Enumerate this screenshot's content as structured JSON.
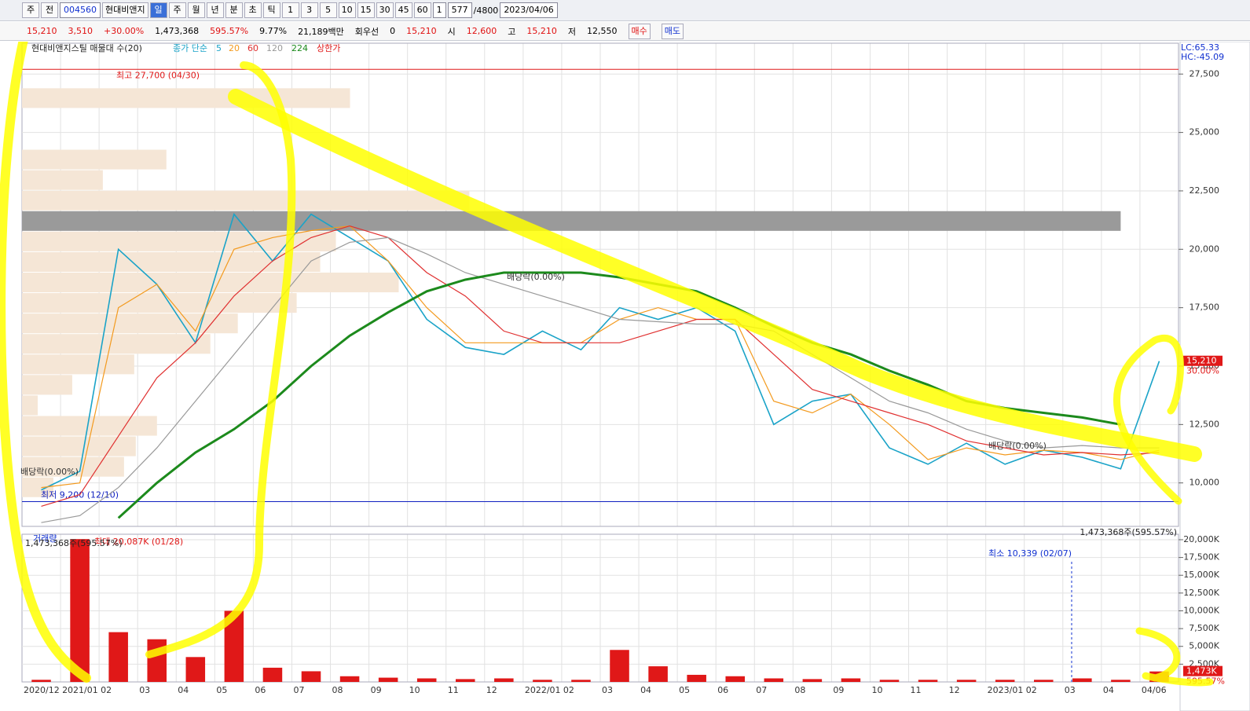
{
  "toolbar": {
    "left": [
      "주",
      "전"
    ],
    "code": "004560",
    "name": "현대비앤지",
    "periods": [
      "일",
      "주",
      "월",
      "년",
      "분",
      "초",
      "틱"
    ],
    "intervals": [
      "1",
      "3",
      "5",
      "10",
      "15",
      "30",
      "45",
      "60"
    ],
    "unit": "1",
    "count": "577",
    "total": "/4800",
    "date": "2023/04/06"
  },
  "quote": {
    "price": "15,210",
    "change": "3,510",
    "rate": "+30.00%",
    "volume": "1,473,368",
    "vol_rate": "595.57%",
    "turnover": "9.77%",
    "amount": "21,189백만",
    "prefer": "회우선",
    "prefer_val": "0",
    "cur": "15,210",
    "open_label": "시",
    "open": "12,600",
    "high_label": "고",
    "high": "15,210",
    "low_label": "저",
    "low": "12,550",
    "buy": "매수",
    "sell": "매도"
  },
  "chart_data": [
    {
      "type": "line",
      "title": "현대비앤지스틸 매물대 수(20)",
      "legend_prefix": "종가 단순",
      "legend_extra": "상한가",
      "categories": [
        "2020/12",
        "2021/01",
        "02",
        "03",
        "04",
        "05",
        "06",
        "07",
        "08",
        "09",
        "10",
        "11",
        "12",
        "2022/01",
        "02",
        "03",
        "04",
        "05",
        "06",
        "07",
        "08",
        "09",
        "10",
        "11",
        "12",
        "2023/01",
        "02",
        "03",
        "04",
        "04/06"
      ],
      "series": [
        {
          "name": "5",
          "color": "#1aa3c8",
          "values": [
            9700,
            10500,
            20000,
            18500,
            16000,
            21500,
            19500,
            21500,
            20500,
            19500,
            17000,
            15800,
            15500,
            16500,
            15700,
            17500,
            17000,
            17500,
            16500,
            12500,
            13500,
            13800,
            11500,
            10800,
            11700,
            10800,
            11400,
            11100,
            10600,
            15210
          ]
        },
        {
          "name": "20",
          "color": "#f39a1e",
          "values": [
            9800,
            10000,
            17500,
            18500,
            16500,
            20000,
            20500,
            20800,
            21000,
            19500,
            17500,
            16000,
            16000,
            16000,
            16000,
            17000,
            17500,
            17000,
            17000,
            13500,
            13000,
            13800,
            12500,
            11000,
            11500,
            11200,
            11400,
            11300,
            11000,
            11400
          ]
        },
        {
          "name": "60",
          "color": "#e03030",
          "values": [
            9000,
            9500,
            12000,
            14500,
            16000,
            18000,
            19500,
            20500,
            21000,
            20500,
            19000,
            18000,
            16500,
            16000,
            16000,
            16000,
            16500,
            17000,
            17000,
            15500,
            14000,
            13500,
            13000,
            12500,
            11800,
            11500,
            11200,
            11300,
            11200,
            11300
          ]
        },
        {
          "name": "120",
          "color": "#999999",
          "values": [
            8300,
            8600,
            9800,
            11500,
            13500,
            15500,
            17500,
            19500,
            20300,
            20500,
            19800,
            19000,
            18500,
            18000,
            17500,
            17000,
            16900,
            16800,
            16800,
            16500,
            15500,
            14500,
            13500,
            13000,
            12300,
            11800,
            11500,
            11600,
            11500,
            11500
          ]
        },
        {
          "name": "224",
          "color": "#1c8a1c",
          "values": [
            null,
            null,
            8500,
            10000,
            11300,
            12300,
            13500,
            15000,
            16300,
            17300,
            18200,
            18700,
            19000,
            19000,
            19000,
            18800,
            18500,
            18200,
            17500,
            16700,
            16000,
            15500,
            14800,
            14200,
            13500,
            13200,
            13000,
            12800,
            12500,
            null
          ]
        }
      ],
      "ylim": [
        8140,
        28820
      ],
      "yticks": [
        {
          "value": 10000,
          "label": "10,000"
        },
        {
          "value": 12500,
          "label": "12,500"
        },
        {
          "value": 15000,
          "label": "15,000"
        },
        {
          "value": 17500,
          "label": "17,500"
        },
        {
          "value": 20000,
          "label": "20,000"
        },
        {
          "value": 22500,
          "label": "22,500"
        },
        {
          "value": 25000,
          "label": "25,000"
        },
        {
          "value": 27500,
          "label": "27,500"
        }
      ],
      "grid": true,
      "profile_range": [
        9358,
        26892
      ],
      "profile": [
        40,
        130,
        145,
        172,
        20,
        64,
        143,
        240,
        275,
        350,
        480,
        380,
        400,
        1400,
        570,
        103,
        184,
        0,
        0,
        418
      ],
      "high": 27700,
      "high_label": "최고 27,700 (04/30)",
      "low": 9200,
      "low_label": "최저 9,200 (12/10)",
      "annotations": [
        "배당락(0.00%)",
        "배당락(0.00%)",
        "배당락(0.00%)"
      ],
      "marker": {
        "value": 15210,
        "label": "15,210",
        "sub": "30.00%"
      },
      "corner": [
        "LC:65.33",
        "HC:-45.09"
      ]
    },
    {
      "type": "bar",
      "title": "거래량",
      "categories_from": 0,
      "series": [
        {
          "name": "거래량",
          "color": "#e01818",
          "values": [
            300,
            20087,
            7000,
            6000,
            3500,
            10000,
            2000,
            1500,
            800,
            600,
            500,
            400,
            500,
            300,
            300,
            4500,
            2200,
            1000,
            800,
            500,
            400,
            500,
            300,
            300,
            300,
            300,
            300,
            500,
            300,
            1473
          ]
        }
      ],
      "ylim": [
        0,
        20770
      ],
      "yticks": [
        {
          "value": 2500,
          "label": "2,500K"
        },
        {
          "value": 5000,
          "label": "5,000K"
        },
        {
          "value": 7500,
          "label": "7,500K"
        },
        {
          "value": 10000,
          "label": "10,000K"
        },
        {
          "value": 12500,
          "label": "12,500K"
        },
        {
          "value": 15000,
          "label": "15,000K"
        },
        {
          "value": 17500,
          "label": "17,500K"
        },
        {
          "value": 20000,
          "label": "20,000K"
        }
      ],
      "grid": true,
      "max_label": "최대 20,087K (01/28)",
      "last_label": "1,473,368주(595.57%)",
      "min_label": "최소 10,339 (02/07)",
      "marker": {
        "value": 1473,
        "label": "1,473K",
        "sub": "595.57%"
      }
    }
  ]
}
